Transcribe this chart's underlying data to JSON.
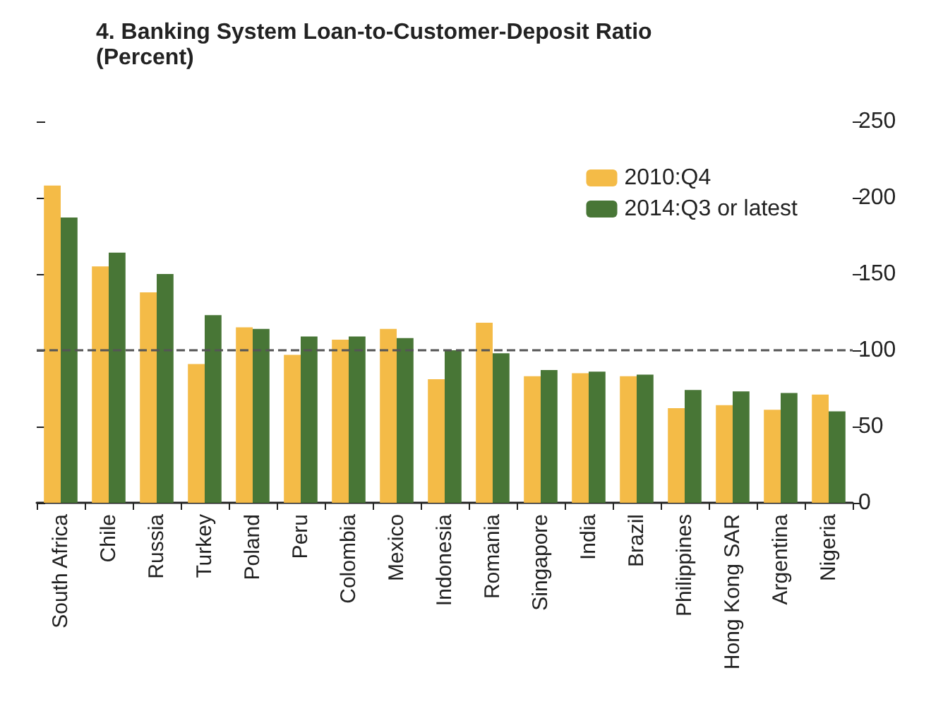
{
  "chart_data": {
    "type": "bar",
    "title": "4. Banking System Loan-to-Customer-Deposit Ratio",
    "subtitle": "(Percent)",
    "categories": [
      "South Africa",
      "Chile",
      "Russia",
      "Turkey",
      "Poland",
      "Peru",
      "Colombia",
      "Mexico",
      "Indonesia",
      "Romania",
      "Singapore",
      "India",
      "Brazil",
      "Philippines",
      "Hong Kong SAR",
      "Argentina",
      "Nigeria"
    ],
    "series": [
      {
        "name": "2010:Q4",
        "color": "#f4bb47",
        "values": [
          208,
          155,
          138,
          91,
          115,
          97,
          107,
          114,
          81,
          118,
          83,
          85,
          83,
          62,
          64,
          61,
          71
        ]
      },
      {
        "name": "2014:Q3 or latest",
        "color": "#487636",
        "values": [
          187,
          164,
          150,
          123,
          114,
          109,
          109,
          108,
          100,
          98,
          87,
          86,
          84,
          74,
          73,
          72,
          60
        ]
      }
    ],
    "ylim": [
      0,
      250
    ],
    "yticks": [
      0,
      50,
      100,
      150,
      200,
      250
    ],
    "ref_lines": [
      {
        "axis": "y",
        "value": 100,
        "line_style": "dashed",
        "color": "#555555"
      }
    ],
    "grid": false,
    "legend": "top right"
  }
}
